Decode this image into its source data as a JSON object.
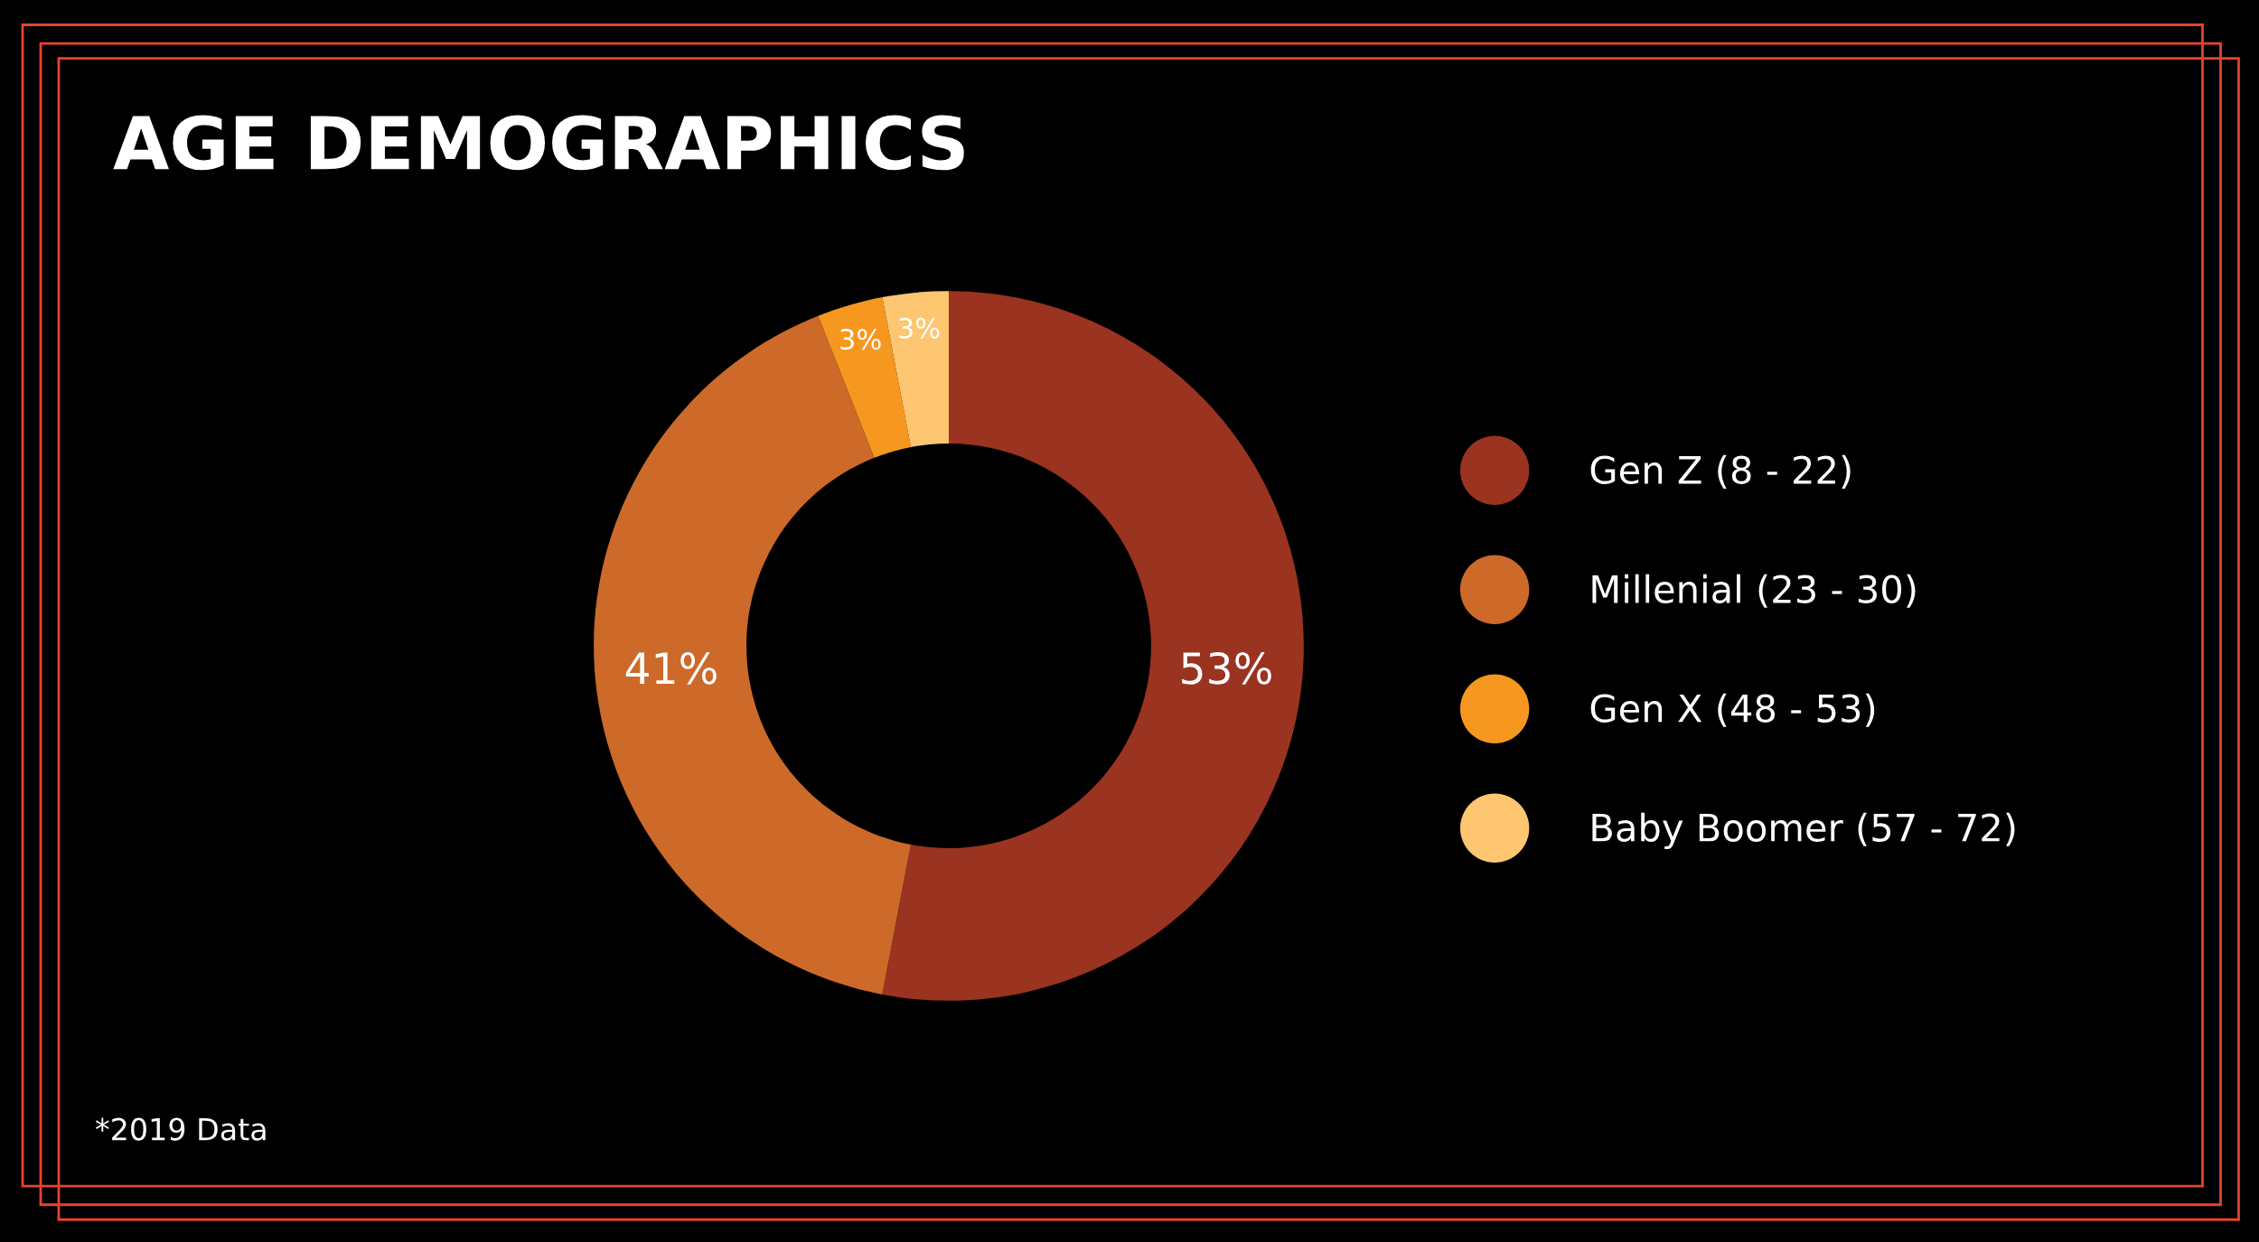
{
  "chart_data": {
    "type": "donut",
    "title": "AGE DEMOGRAPHICS",
    "categories": [
      "Gen Z (8 - 22)",
      "Millenial (23 - 30)",
      "Gen X (48 - 53)",
      "Baby Boomer (57 - 72)"
    ],
    "values": [
      53,
      41,
      3,
      3
    ],
    "colors": [
      "#9a3320",
      "#cd6a2a",
      "#f6981f",
      "#fec671"
    ],
    "value_labels": [
      "53%",
      "41%",
      "3%",
      "3%"
    ],
    "legend": "right",
    "annotations": [
      "*2019 Data"
    ]
  }
}
